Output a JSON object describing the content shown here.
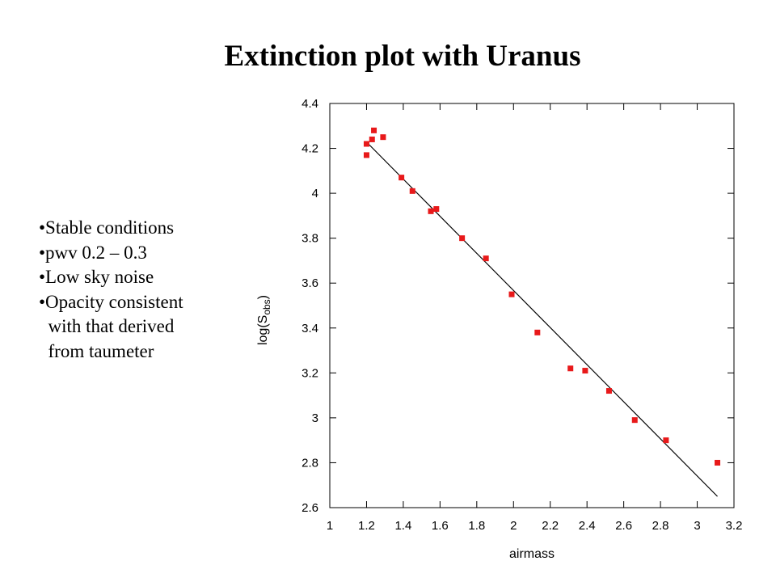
{
  "slide": {
    "title": "Extinction plot with Uranus",
    "bullets": [
      "•Stable conditions",
      "•pwv 0.2 – 0.3",
      "•Low sky noise",
      "•Opacity consistent",
      "  with that derived",
      "  from taumeter"
    ]
  },
  "chart_data": {
    "type": "scatter",
    "xlabel": "airmass",
    "ylabel": "log(S",
    "ylabel_subscript": "obs",
    "ylabel_suffix": ")",
    "xlim": [
      1,
      3.2
    ],
    "ylim": [
      2.6,
      4.4
    ],
    "x_ticks": [
      1,
      1.2,
      1.4,
      1.6,
      1.8,
      2,
      2.2,
      2.4,
      2.6,
      2.8,
      3,
      3.2
    ],
    "x_tick_labels": [
      "1",
      "1.2",
      "1.4",
      "1.6",
      "1.8",
      "2",
      "2.2",
      "2.4",
      "2.6",
      "2.8",
      "3",
      "3.2"
    ],
    "y_ticks": [
      2.6,
      2.8,
      3,
      3.2,
      3.4,
      3.6,
      3.8,
      4,
      4.2,
      4.4
    ],
    "y_tick_labels": [
      "2.6",
      "2.8",
      "3",
      "3.2",
      "3.4",
      "3.6",
      "3.8",
      "4",
      "4.2",
      "4.4"
    ],
    "grid": false,
    "marker_color": "#e8191a",
    "line_color": "#000000",
    "points": [
      {
        "x": 1.2,
        "y": 4.22
      },
      {
        "x": 1.2,
        "y": 4.17
      },
      {
        "x": 1.23,
        "y": 4.24
      },
      {
        "x": 1.24,
        "y": 4.28
      },
      {
        "x": 1.29,
        "y": 4.25
      },
      {
        "x": 1.39,
        "y": 4.07
      },
      {
        "x": 1.45,
        "y": 4.01
      },
      {
        "x": 1.55,
        "y": 3.92
      },
      {
        "x": 1.58,
        "y": 3.93
      },
      {
        "x": 1.72,
        "y": 3.8
      },
      {
        "x": 1.85,
        "y": 3.71
      },
      {
        "x": 1.99,
        "y": 3.55
      },
      {
        "x": 2.13,
        "y": 3.38
      },
      {
        "x": 2.31,
        "y": 3.22
      },
      {
        "x": 2.39,
        "y": 3.21
      },
      {
        "x": 2.52,
        "y": 3.12
      },
      {
        "x": 2.66,
        "y": 2.99
      },
      {
        "x": 2.83,
        "y": 2.9
      },
      {
        "x": 3.11,
        "y": 2.8
      }
    ],
    "fit_line": [
      {
        "x": 1.21,
        "y": 4.22
      },
      {
        "x": 3.11,
        "y": 2.65
      }
    ]
  }
}
